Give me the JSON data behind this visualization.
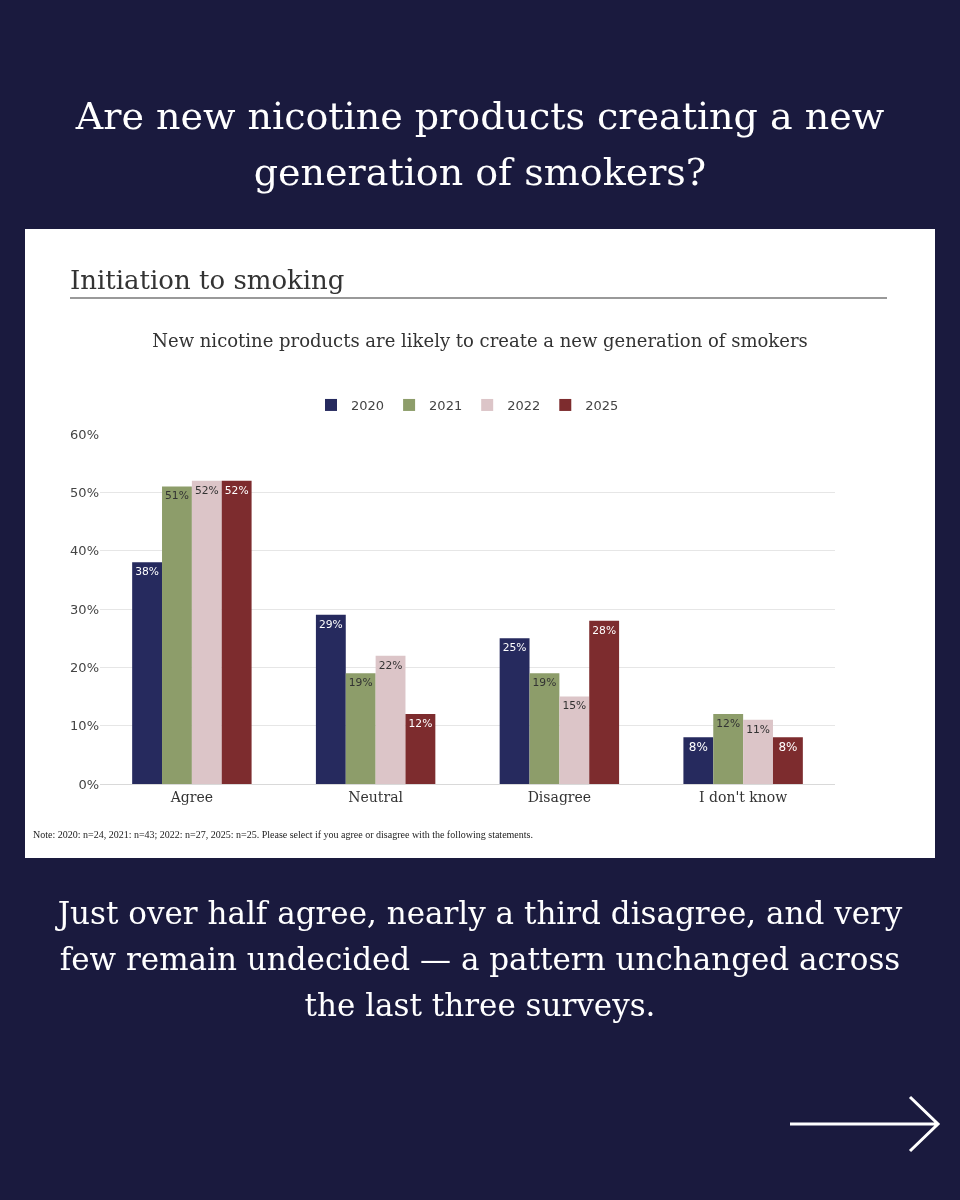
{
  "chart_data": {
    "type": "bar",
    "title": "New nicotine products are likely to create a new generation of smokers",
    "categories": [
      "Agree",
      "Neutral",
      "Disagree",
      "I don't know"
    ],
    "series": [
      {
        "name": "2020",
        "color": "#262a5e",
        "values": [
          38,
          29,
          25,
          8
        ],
        "value_labels": [
          "38%",
          "29%",
          "25%",
          "8%"
        ]
      },
      {
        "name": "2021",
        "color": "#8d9d6a",
        "values": [
          51,
          19,
          19,
          12
        ],
        "value_labels": [
          "51%",
          "19%",
          "19%",
          "12%"
        ]
      },
      {
        "name": "2022",
        "color": "#dcc5c8",
        "values": [
          52,
          22,
          15,
          11
        ],
        "value_labels": [
          "52%",
          "22%",
          "15%",
          "11%"
        ]
      },
      {
        "name": "2025",
        "color": "#7d2c2e",
        "values": [
          52,
          12,
          28,
          8
        ],
        "value_labels": [
          "52%",
          "12%",
          "28%",
          "8%"
        ]
      }
    ],
    "ylim": [
      0,
      60
    ],
    "yticks": [
      {
        "value": 0,
        "label": "0%"
      },
      {
        "value": 10,
        "label": "10%"
      },
      {
        "value": 20,
        "label": "20%"
      },
      {
        "value": 30,
        "label": "30%"
      },
      {
        "value": 40,
        "label": "40%"
      },
      {
        "value": 50,
        "label": "50%"
      },
      {
        "value": 60,
        "label": "60%"
      }
    ],
    "grid": "y",
    "legend": "top",
    "annotations": [
      "Are new nicotine products creating a new generation of smokers?",
      "Initiation to smoking",
      "Note: 2020: n=24, 2021: n=43; 2022: n=27, 2025: n=25. Please select if you agree or disagree with the following statements.",
      "Just over half agree, nearly a third disagree, and very few remain undecided — a pattern unchanged across the last three surveys."
    ]
  }
}
